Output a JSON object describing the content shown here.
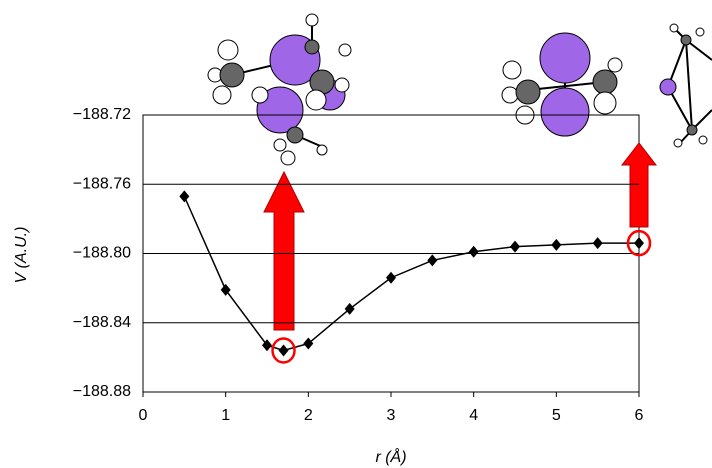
{
  "chart_data": {
    "type": "line",
    "xlabel": "r (Å)",
    "ylabel": "V (A.U.)",
    "x": [
      0.5,
      1.0,
      1.5,
      1.7,
      2.0,
      2.5,
      3.0,
      3.5,
      4.0,
      4.5,
      5.0,
      5.5,
      6.0
    ],
    "series": [
      {
        "color": "#000000",
        "values": [
          -188.767,
          -188.821,
          -188.853,
          -188.856,
          -188.852,
          -188.832,
          -188.814,
          -188.804,
          -188.799,
          -188.796,
          -188.795,
          -188.794,
          -188.794
        ]
      }
    ],
    "xlim": [
      0,
      6
    ],
    "xticks": [
      0,
      1,
      2,
      3,
      4,
      5,
      6
    ],
    "ylim": [
      -188.88,
      -188.72
    ],
    "yticks": [
      {
        "value": -188.88,
        "label": "−188.88"
      },
      {
        "value": -188.84,
        "label": "−188.84"
      },
      {
        "value": -188.8,
        "label": "−188.80"
      },
      {
        "value": -188.76,
        "label": "−188.76"
      },
      {
        "value": -188.72,
        "label": "−188.72"
      }
    ],
    "grid": true
  }
}
